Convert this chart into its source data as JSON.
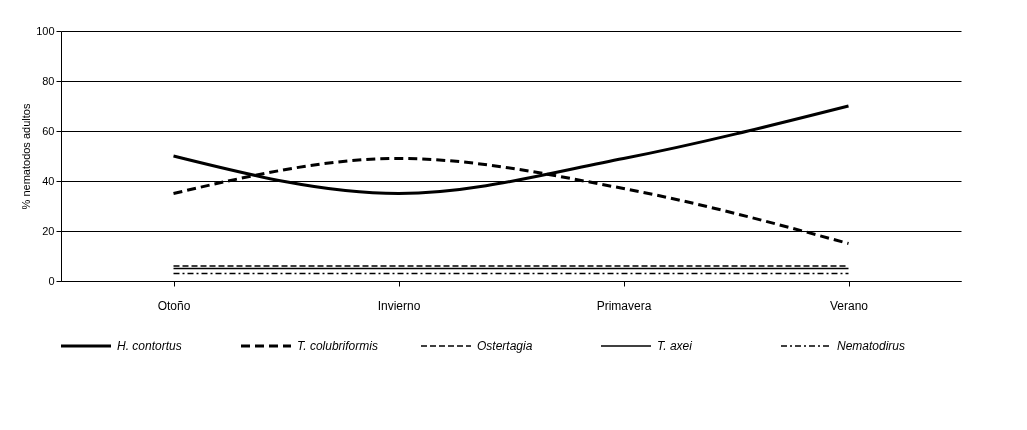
{
  "chart_data": {
    "type": "line",
    "ylabel": "% nematodos adultos",
    "categories": [
      "Otoño",
      "Invierno",
      "Primavera",
      "Verano"
    ],
    "ylim": [
      0,
      100
    ],
    "yticks": [
      0,
      20,
      40,
      60,
      80,
      100
    ],
    "grid": "y",
    "legend": "bottom",
    "series": [
      {
        "name": "H. contortus",
        "color": "#000000",
        "line_style": "solid",
        "values": [
          50,
          35,
          49,
          70
        ]
      },
      {
        "name": "T. colubriformis",
        "color": "#000000",
        "line_style": "dashed",
        "values": [
          35,
          49,
          37,
          15
        ]
      },
      {
        "name": "Ostertagia",
        "color": "#000000",
        "line_style": "dashed",
        "values": [
          6,
          6,
          6,
          6
        ]
      },
      {
        "name": "T. axei",
        "color": "#000000",
        "line_style": "solid",
        "values": [
          5,
          5,
          5,
          5
        ]
      },
      {
        "name": "Nematodirus",
        "color": "#000000",
        "line_style": "dotted",
        "values": [
          3,
          3,
          3,
          3
        ]
      }
    ]
  }
}
